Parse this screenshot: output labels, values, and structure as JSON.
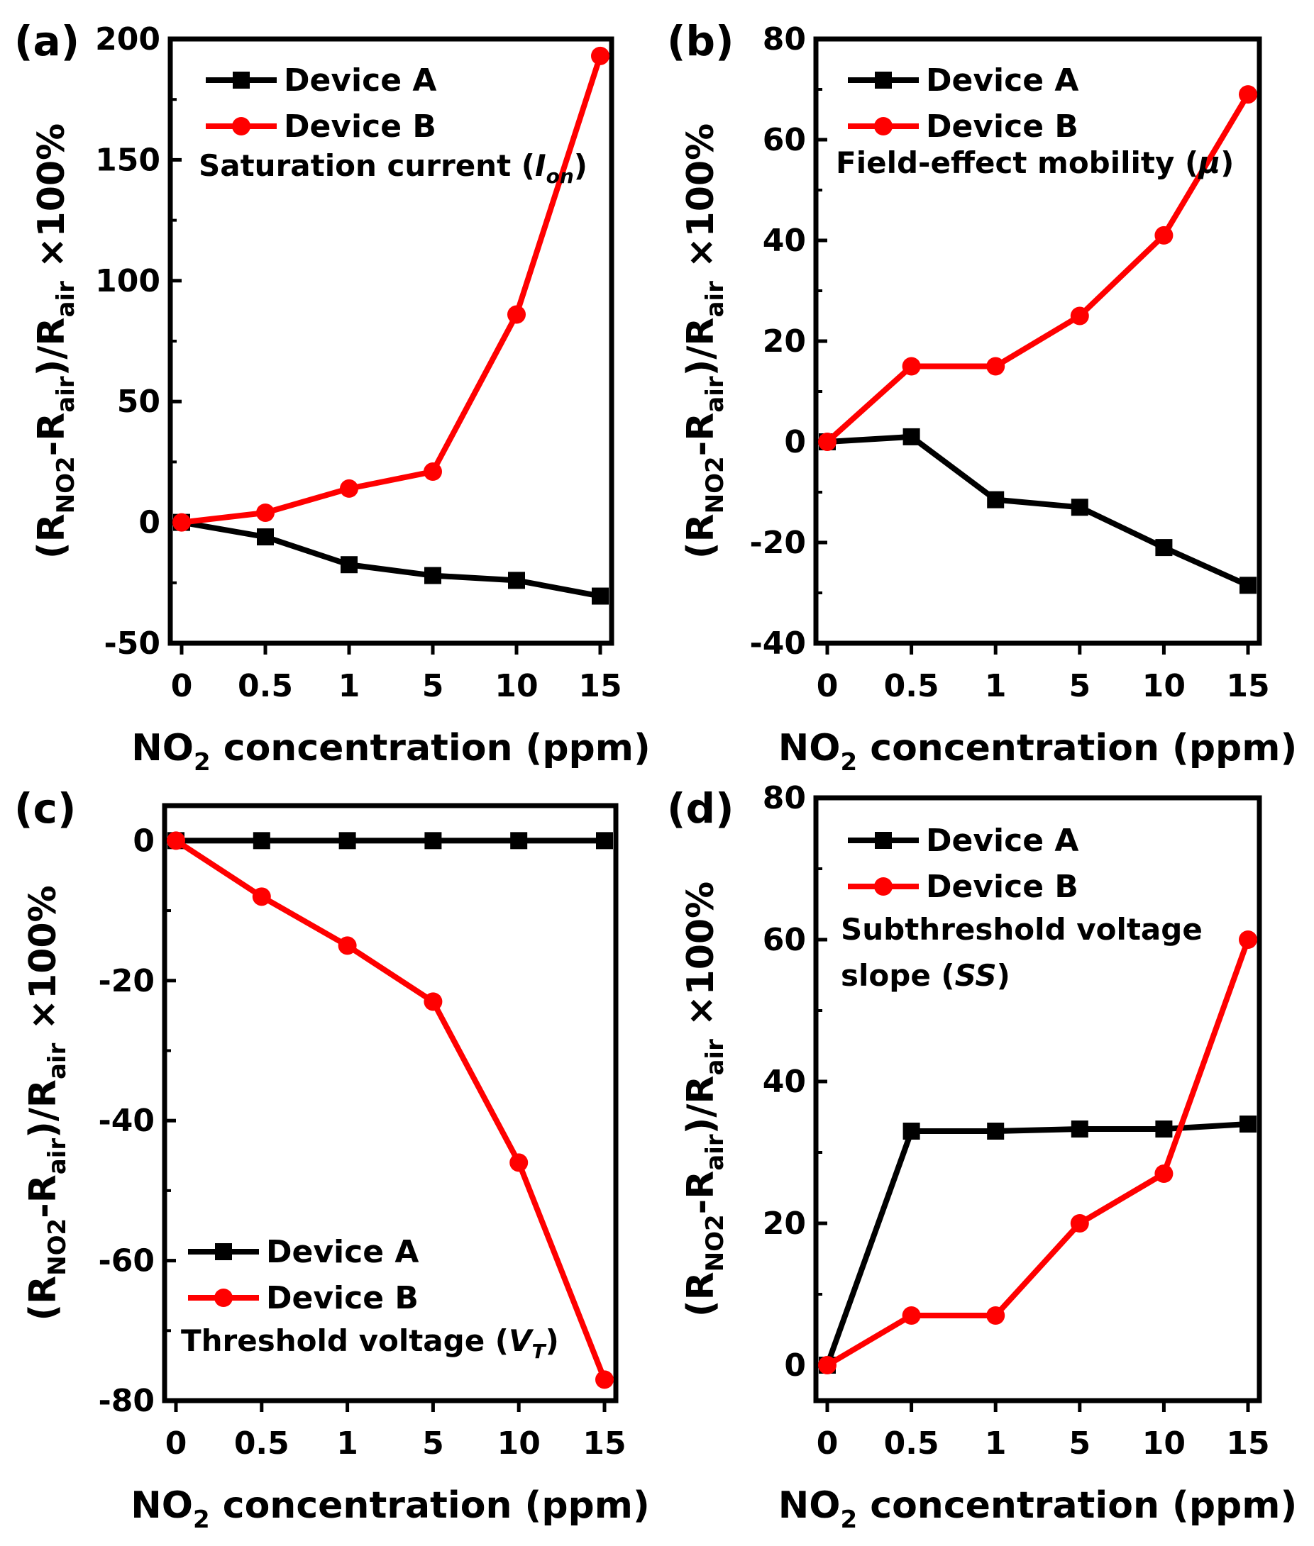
{
  "colors": {
    "device_a": "#000000",
    "device_b": "#ff0000"
  },
  "chart_data": [
    {
      "type": "line",
      "panel_label": "(a)",
      "categories": [
        "0",
        "0.5",
        "1",
        "5",
        "10",
        "15"
      ],
      "series": [
        {
          "name": "Device A",
          "marker": "square",
          "values": [
            0,
            -6,
            -17.5,
            -22,
            -24,
            -30.5
          ]
        },
        {
          "name": "Device B",
          "marker": "circle",
          "values": [
            0,
            4,
            14,
            21,
            86,
            193
          ]
        }
      ],
      "xlabel": {
        "pre": "NO",
        "sub": "2",
        "post": " concentration (ppm)"
      },
      "ylabel": {
        "parts": [
          "(R",
          "NO2",
          "-R",
          "air",
          ")/R",
          "air",
          " ×100%"
        ]
      },
      "ylim": [
        -50,
        200
      ],
      "yticks": [
        "-50",
        "0",
        "50",
        "100",
        "150",
        "200"
      ],
      "annotation": {
        "lines": [
          {
            "pre": "Saturation current (",
            "italic": "I",
            "sub": "on",
            "post": ")"
          }
        ]
      },
      "legend_position": "top-left"
    },
    {
      "type": "line",
      "panel_label": "(b)",
      "categories": [
        "0",
        "0.5",
        "1",
        "5",
        "10",
        "15"
      ],
      "series": [
        {
          "name": "Device A",
          "marker": "square",
          "values": [
            0,
            1,
            -11.5,
            -13,
            -21,
            -28.5
          ]
        },
        {
          "name": "Device B",
          "marker": "circle",
          "values": [
            0,
            15,
            15,
            25,
            41,
            69
          ]
        }
      ],
      "xlabel": {
        "pre": "NO",
        "sub": "2",
        "post": " concentration (ppm)"
      },
      "ylabel": {
        "parts": [
          "(R",
          "NO2",
          "-R",
          "air",
          ")/R",
          "air",
          " ×100%"
        ]
      },
      "ylim": [
        -40,
        80
      ],
      "yticks": [
        "-40",
        "-20",
        "0",
        "20",
        "40",
        "60",
        "80"
      ],
      "annotation": {
        "lines": [
          {
            "pre": "Field-effect mobility (",
            "italic": "μ",
            "sub": "",
            "post": ")"
          }
        ]
      },
      "legend_position": "top-left"
    },
    {
      "type": "line",
      "panel_label": "(c)",
      "categories": [
        "0",
        "0.5",
        "1",
        "5",
        "10",
        "15"
      ],
      "series": [
        {
          "name": "Device A",
          "marker": "square",
          "values": [
            0,
            0,
            0,
            0,
            0,
            0
          ]
        },
        {
          "name": "Device B",
          "marker": "circle",
          "values": [
            0,
            -8,
            -15,
            -23,
            -46,
            -77
          ]
        }
      ],
      "xlabel": {
        "pre": "NO",
        "sub": "2",
        "post": " concentration (ppm)"
      },
      "ylabel": {
        "parts": [
          "(R",
          "NO2",
          "-R",
          "air",
          ")/R",
          "air",
          " ×100%"
        ]
      },
      "ylim": [
        -80,
        5
      ],
      "yticks": [
        "-80",
        "-60",
        "-40",
        "-20",
        "0"
      ],
      "annotation": {
        "lines": [
          {
            "pre": "Threshold voltage (",
            "italic": "V",
            "sub": "T",
            "post": ")"
          }
        ]
      },
      "legend_position": "bottom-left"
    },
    {
      "type": "line",
      "panel_label": "(d)",
      "categories": [
        "0",
        "0.5",
        "1",
        "5",
        "10",
        "15"
      ],
      "series": [
        {
          "name": "Device A",
          "marker": "square",
          "values": [
            0,
            33,
            33,
            33.3,
            33.3,
            34
          ]
        },
        {
          "name": "Device B",
          "marker": "circle",
          "values": [
            0,
            7,
            7,
            20,
            27,
            60
          ]
        }
      ],
      "xlabel": {
        "pre": "NO",
        "sub": "2",
        "post": " concentration (ppm)"
      },
      "ylabel": {
        "parts": [
          "(R",
          "NO2",
          "-R",
          "air",
          ")/R",
          "air",
          " ×100%"
        ]
      },
      "ylim": [
        -5,
        80
      ],
      "yticks": [
        "0",
        "20",
        "40",
        "60",
        "80"
      ],
      "annotation": {
        "lines": [
          {
            "pre": "Subthreshold voltage",
            "italic": "",
            "sub": "",
            "post": ""
          },
          {
            "pre": "slope (",
            "italic": "SS",
            "sub": "",
            "post": ")"
          }
        ]
      },
      "legend_position": "top-left"
    }
  ]
}
